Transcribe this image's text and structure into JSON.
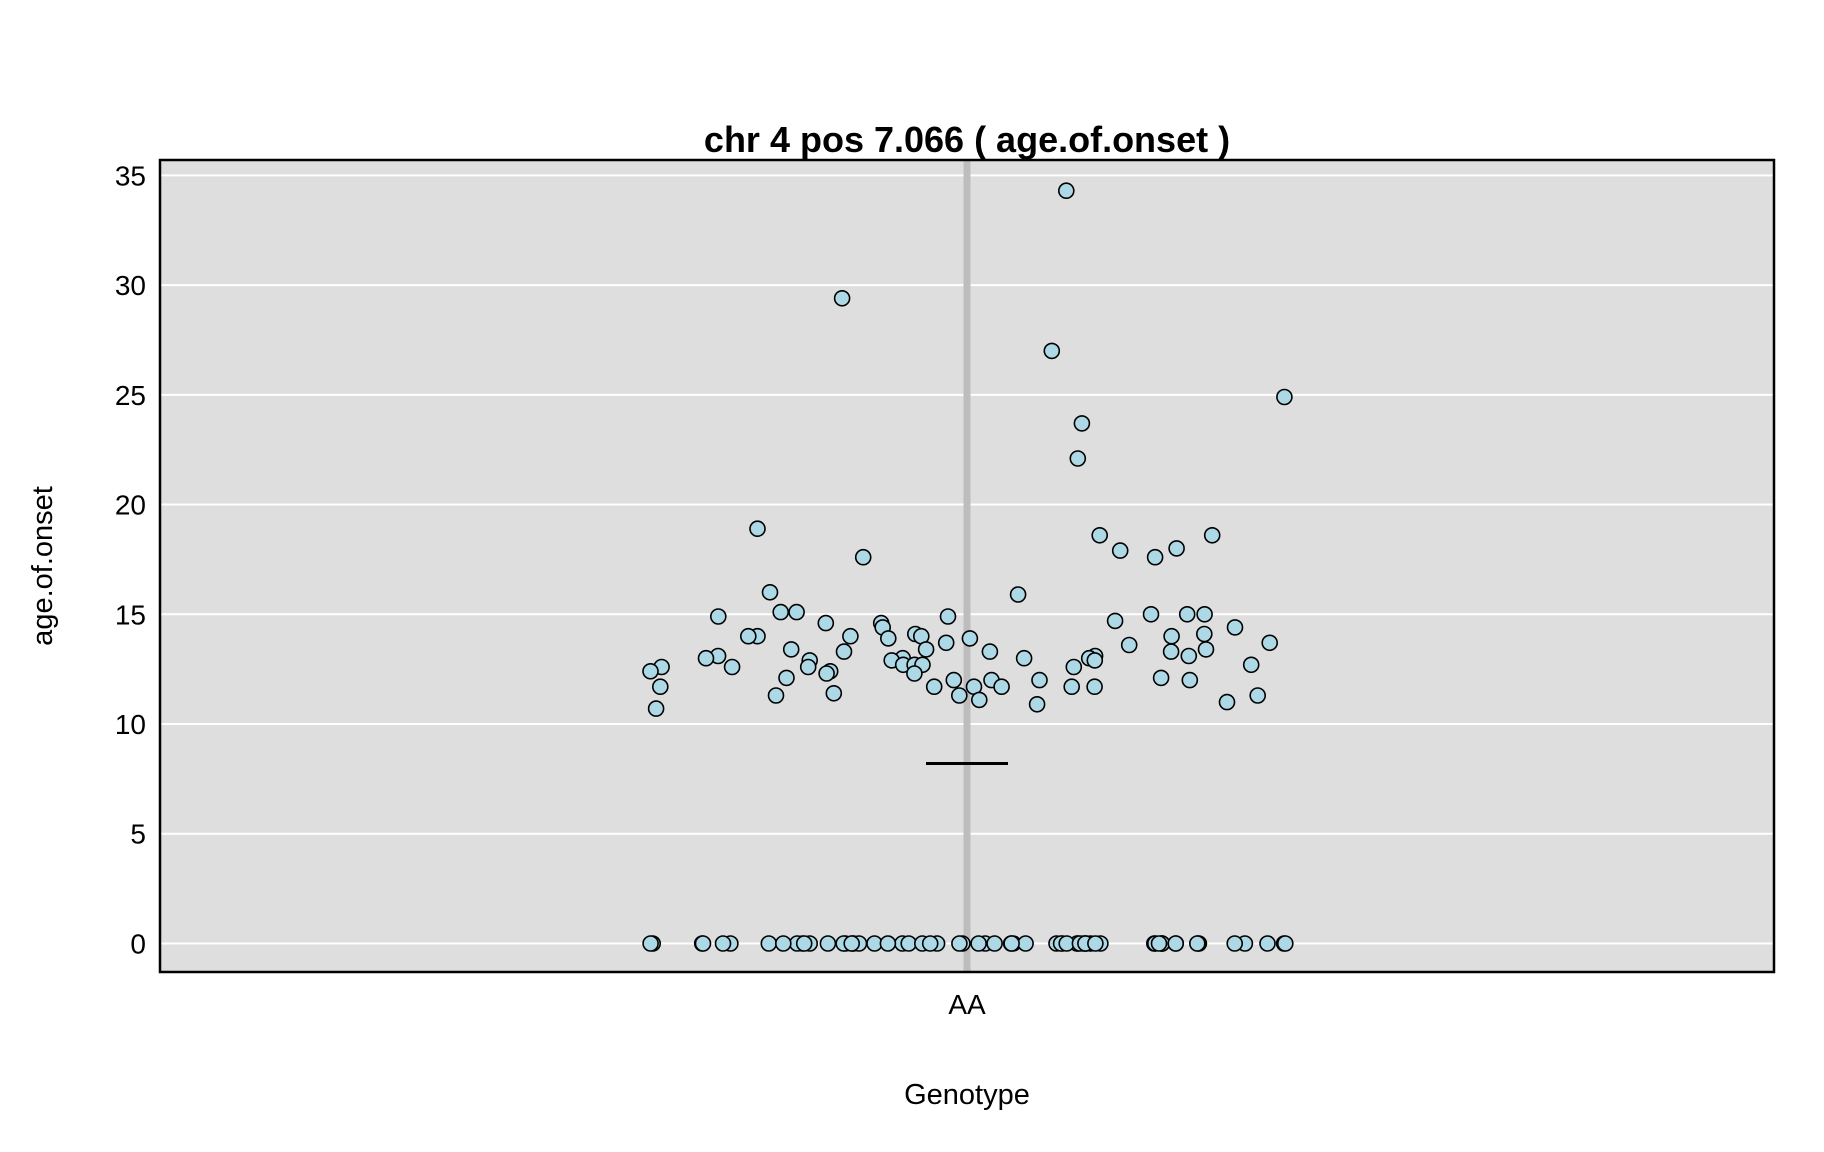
{
  "chart_data": {
    "type": "scatter",
    "title": "chr 4 pos 7.066 ( age.of.onset )",
    "xlabel": "Genotype",
    "ylabel": "age.of.onset",
    "categories": [
      "AA"
    ],
    "ylim": [
      -1.3,
      35.7
    ],
    "yticks": [
      0,
      5,
      10,
      15,
      20,
      25,
      30,
      35
    ],
    "grid": true,
    "background": "#dedede",
    "point_fill": "#add8e6",
    "point_stroke": "#000000",
    "mean_line_value": 8.2,
    "series": [
      {
        "category": "AA",
        "values": [
          34.3,
          29.4,
          27.0,
          24.9,
          23.7,
          22.1,
          18.9,
          18.6,
          18.6,
          18.0,
          17.9,
          17.6,
          17.6,
          16.0,
          15.9,
          15.1,
          15.1,
          15.0,
          15.0,
          15.0,
          14.9,
          14.9,
          14.7,
          14.6,
          14.6,
          14.4,
          14.4,
          14.1,
          14.1,
          14.0,
          14.0,
          14.0,
          14.0,
          14.0,
          13.9,
          13.9,
          13.7,
          13.7,
          13.6,
          13.4,
          13.4,
          13.4,
          13.3,
          13.3,
          13.3,
          13.1,
          13.1,
          13.1,
          13.0,
          13.0,
          13.0,
          13.0,
          12.9,
          12.9,
          12.9,
          12.7,
          12.7,
          12.7,
          12.7,
          12.6,
          12.6,
          12.6,
          12.6,
          12.4,
          12.4,
          12.3,
          12.3,
          12.1,
          12.1,
          12.0,
          12.0,
          12.0,
          12.0,
          11.7,
          11.7,
          11.7,
          11.7,
          11.7,
          11.7,
          11.4,
          11.3,
          11.3,
          11.3,
          11.1,
          11.0,
          10.9,
          10.7,
          0,
          0,
          0,
          0,
          0,
          0,
          0,
          0,
          0,
          0,
          0,
          0,
          0,
          0,
          0,
          0,
          0,
          0,
          0,
          0,
          0,
          0,
          0,
          0,
          0,
          0,
          0,
          0,
          0,
          0,
          0,
          0,
          0,
          0,
          0,
          0,
          0,
          0,
          0,
          0,
          0,
          0,
          0,
          0,
          0,
          0,
          0,
          0,
          0,
          0,
          0,
          0,
          0,
          0,
          0,
          0,
          0,
          0,
          0,
          0,
          0,
          0,
          0,
          0,
          0
        ]
      }
    ]
  }
}
